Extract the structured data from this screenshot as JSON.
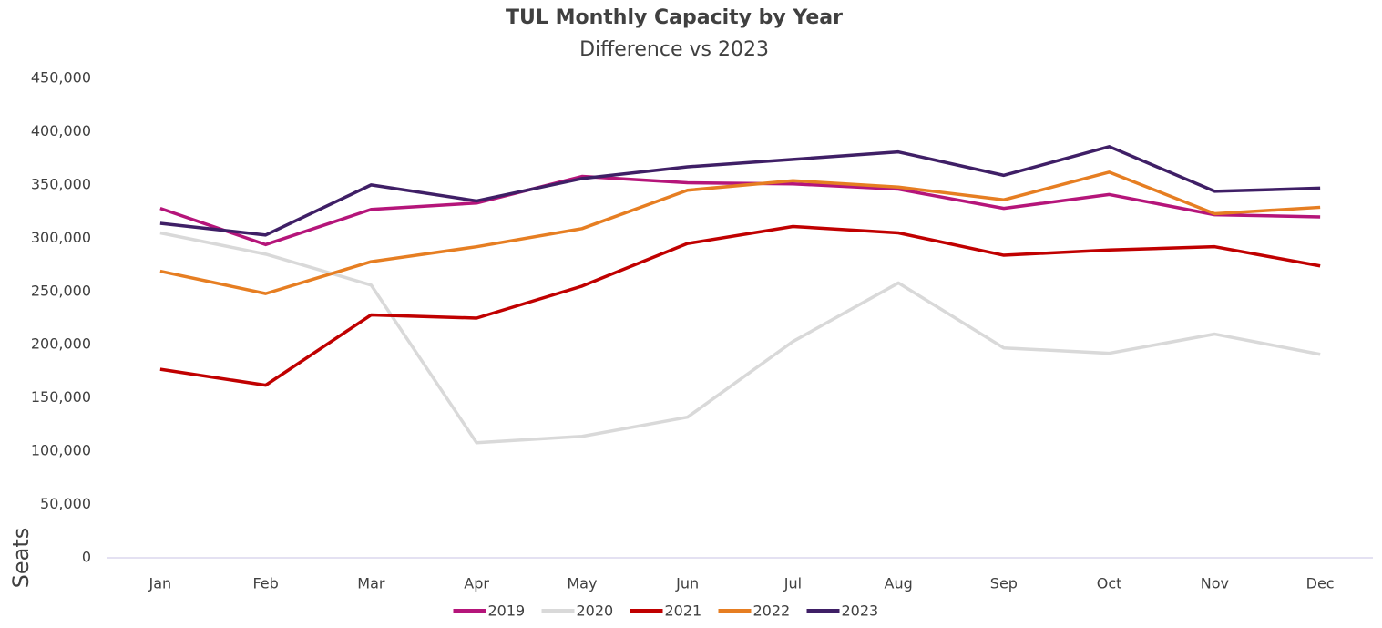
{
  "chart_data": {
    "type": "line",
    "title": "TUL Monthly Capacity by Year",
    "subtitle": "Difference vs 2023",
    "y_label": "Seats",
    "categories": [
      "Jan",
      "Feb",
      "Mar",
      "Apr",
      "May",
      "Jun",
      "Jul",
      "Aug",
      "Sep",
      "Oct",
      "Nov",
      "Dec"
    ],
    "series": [
      {
        "name": "2019",
        "color": "#b5157a",
        "values": [
          328000,
          294000,
          327000,
          333000,
          358000,
          352000,
          351000,
          346000,
          328000,
          341000,
          322000,
          320000
        ]
      },
      {
        "name": "2020",
        "color": "#d9d9d9",
        "values": [
          305000,
          285000,
          256000,
          108000,
          114000,
          132000,
          203000,
          258000,
          197000,
          192000,
          210000,
          191000
        ]
      },
      {
        "name": "2021",
        "color": "#c00000",
        "values": [
          177000,
          162000,
          228000,
          225000,
          255000,
          295000,
          311000,
          305000,
          284000,
          289000,
          292000,
          274000
        ]
      },
      {
        "name": "2022",
        "color": "#e67e22",
        "values": [
          269000,
          248000,
          278000,
          292000,
          309000,
          345000,
          354000,
          348000,
          336000,
          362000,
          323000,
          329000
        ]
      },
      {
        "name": "2023",
        "color": "#3f1f66",
        "values": [
          314000,
          303000,
          350000,
          335000,
          356000,
          367000,
          374000,
          381000,
          359000,
          386000,
          344000,
          347000
        ]
      }
    ],
    "ylim": [
      0,
      450000
    ],
    "yticks": [
      0,
      {
        "value": 50000,
        "label": "50,000"
      },
      {
        "value": 100000,
        "label": "100,000"
      },
      {
        "value": 150000,
        "label": "150,000"
      },
      {
        "value": 200000,
        "label": "200,000"
      },
      {
        "value": 250000,
        "label": "250,000"
      },
      {
        "value": 300000,
        "label": "300,000"
      },
      {
        "value": 350000,
        "label": "350,000"
      },
      {
        "value": 400000,
        "label": "400,000"
      },
      {
        "value": 450000,
        "label": "450,000"
      }
    ],
    "grid": false,
    "legend": "bottom"
  }
}
